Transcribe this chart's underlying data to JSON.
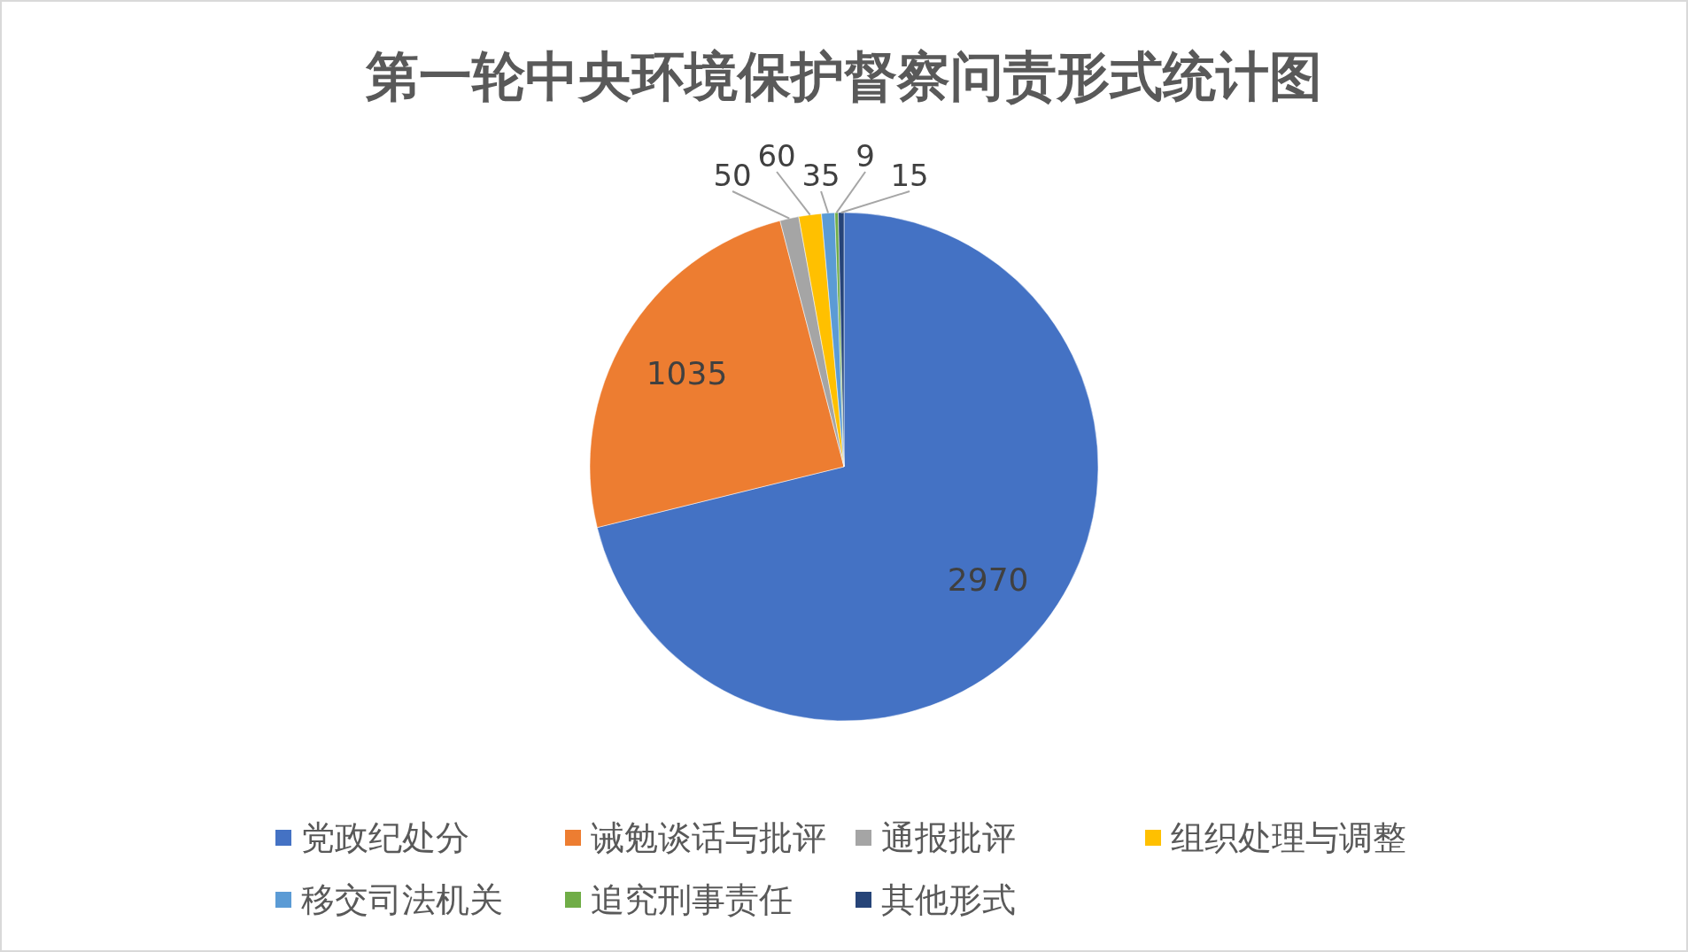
{
  "chart_data": {
    "type": "pie",
    "title": "第一轮中央环境保护督察问责形式统计图",
    "categories": [
      "党政纪处分",
      "诫勉谈话与批评",
      "通报批评",
      "组织处理与调整",
      "移交司法机关",
      "追究刑事责任",
      "其他形式"
    ],
    "values": [
      2970,
      1035,
      50,
      60,
      35,
      9,
      15
    ],
    "colors": [
      "#4472c4",
      "#ed7d31",
      "#a5a5a5",
      "#ffc000",
      "#5b9bd5",
      "#70ad47",
      "#264478"
    ],
    "data_labels": true,
    "legend": "bottom"
  }
}
